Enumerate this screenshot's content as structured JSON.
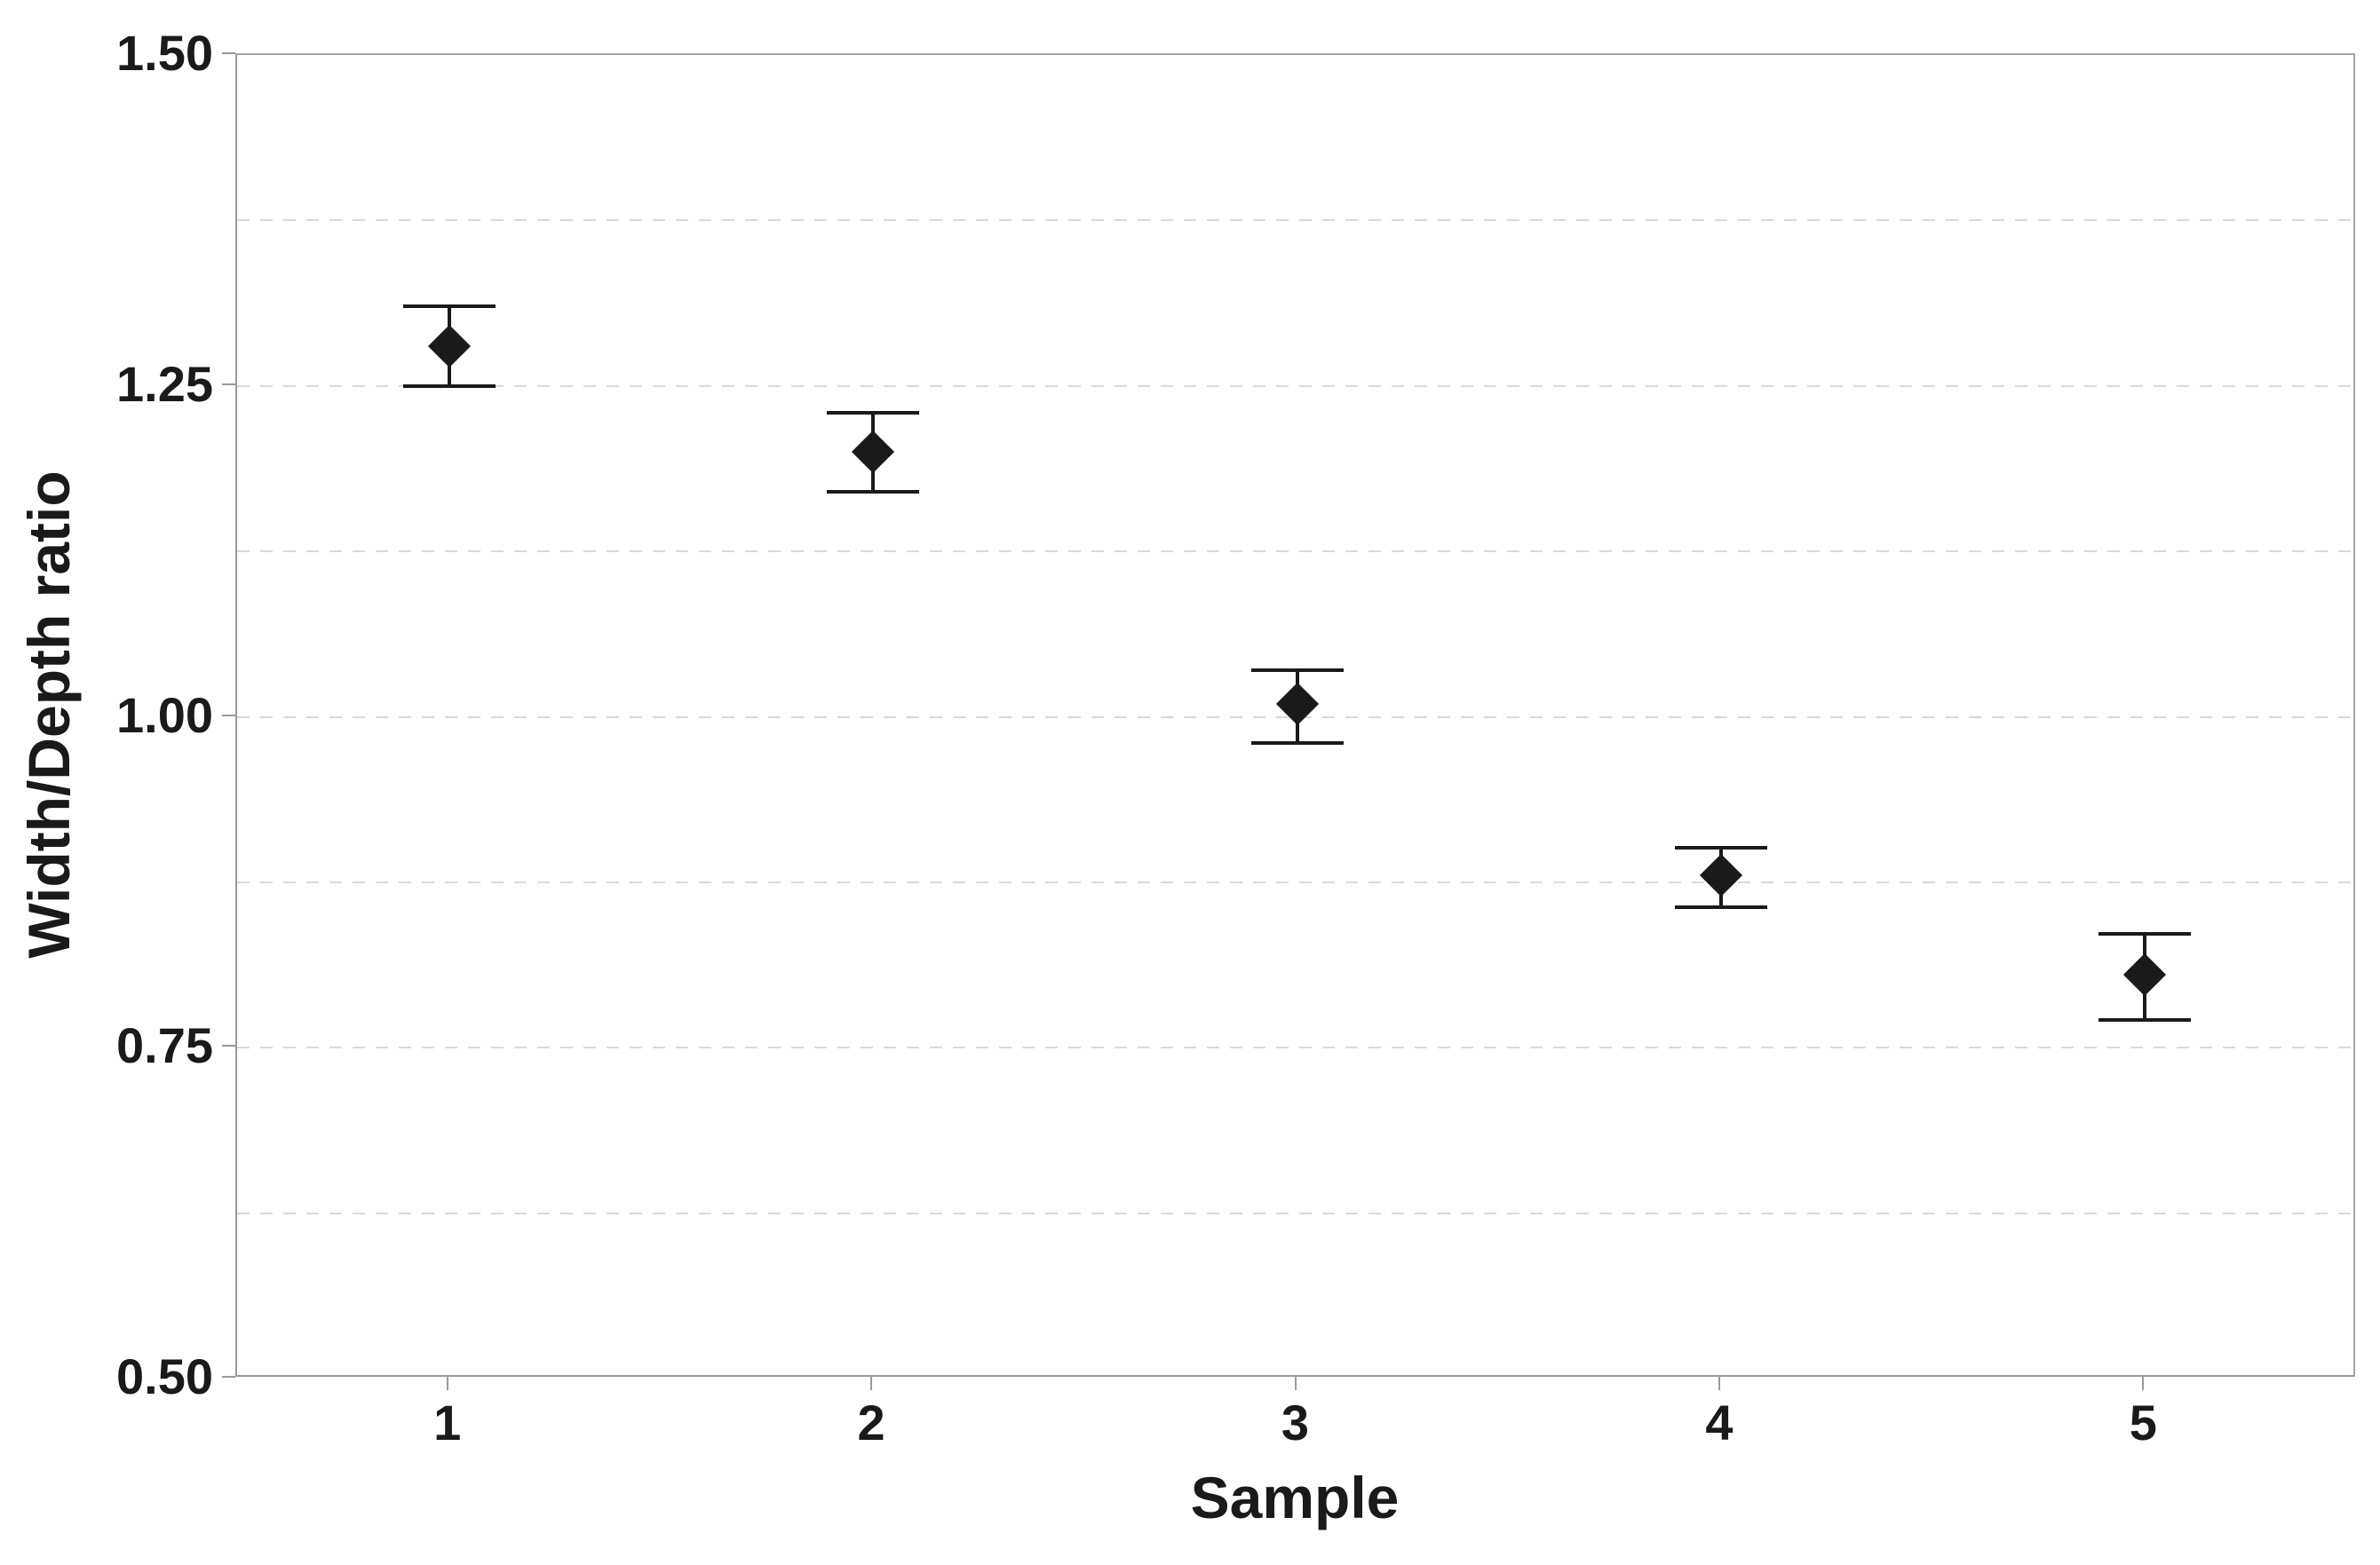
{
  "chart_data": {
    "type": "scatter",
    "subtype": "interval_plot_mean_with_error_bars",
    "xlabel": "Sample",
    "ylabel": "Width/Depth ratio",
    "categories": [
      "1",
      "2",
      "3",
      "4",
      "5"
    ],
    "points": [
      {
        "sample": "1",
        "mean": 1.28,
        "ci_low": 1.25,
        "ci_high": 1.31
      },
      {
        "sample": "2",
        "mean": 1.2,
        "ci_low": 1.17,
        "ci_high": 1.23
      },
      {
        "sample": "3",
        "mean": 1.01,
        "ci_low": 0.98,
        "ci_high": 1.035
      },
      {
        "sample": "4",
        "mean": 0.88,
        "ci_low": 0.856,
        "ci_high": 0.901
      },
      {
        "sample": "5",
        "mean": 0.805,
        "ci_low": 0.771,
        "ci_high": 0.836
      }
    ],
    "ylim": [
      0.5,
      1.5
    ],
    "y_ticks": [
      {
        "value": 1.5,
        "label": "1.50"
      },
      {
        "value": 1.25,
        "label": "1.25"
      },
      {
        "value": 1.0,
        "label": "1.00"
      },
      {
        "value": 0.75,
        "label": "0.75"
      },
      {
        "value": 0.5,
        "label": "0.50"
      }
    ],
    "gridlines": {
      "orientation": "horizontal",
      "style": "dashed",
      "values": [
        0.625,
        0.75,
        0.875,
        1.0,
        1.125,
        1.25,
        1.375
      ]
    },
    "marker": "diamond",
    "grid_on": true,
    "legend": "none",
    "colors": {
      "marker": "#1a1a1a",
      "grid": "#d9d9d9",
      "frame": "#a5a5a5",
      "axis": "#9a9a9a",
      "text": "#1a1a1a",
      "background": "#ffffff"
    }
  }
}
